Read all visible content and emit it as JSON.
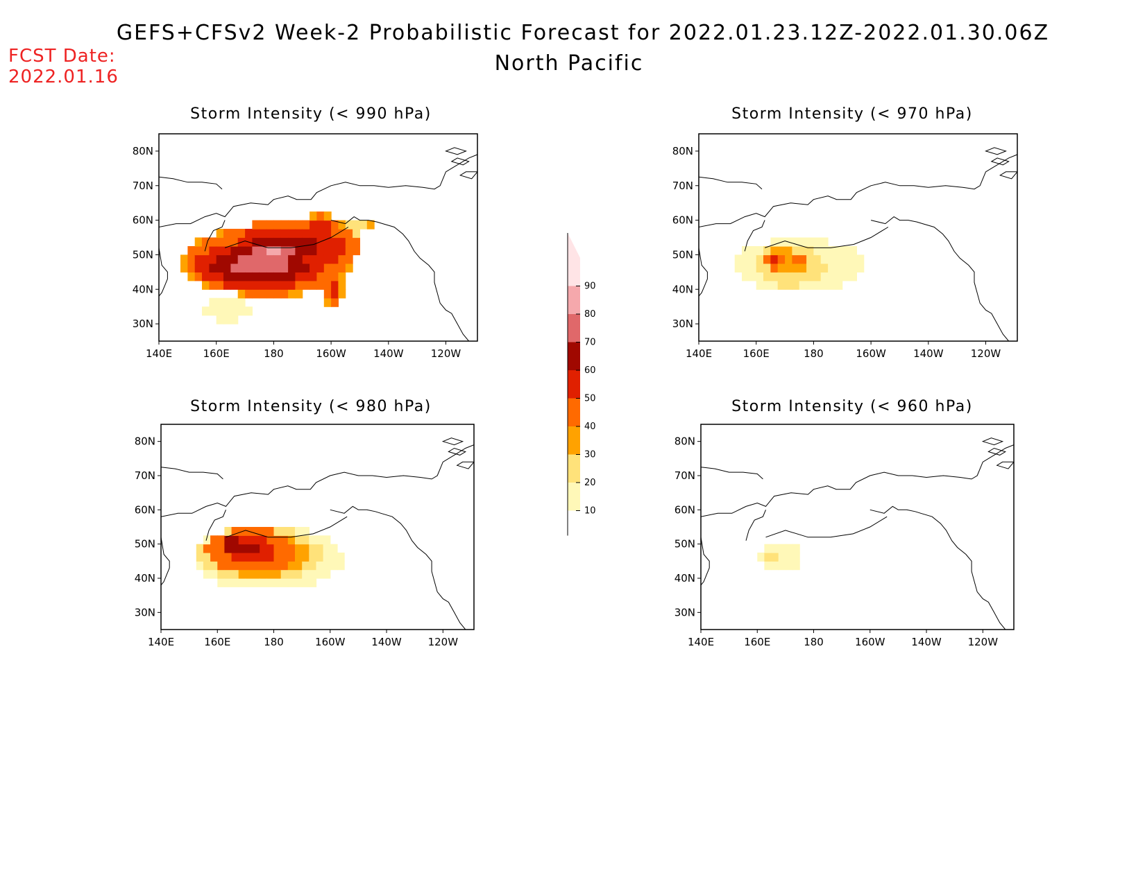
{
  "header": {
    "title": "GEFS+CFSv2 Week-2 Probabilistic Forecast for 2022.01.23.12Z-2022.01.30.06Z",
    "subtitle": "North Pacific",
    "fcst_date_label": "FCST Date:",
    "fcst_date_value": "2022.01.16",
    "fcst_color": "#ee2222"
  },
  "axes": {
    "lon_labels": [
      "140E",
      "160E",
      "180",
      "160W",
      "140W",
      "120W"
    ],
    "lon_values": [
      140,
      160,
      180,
      200,
      220,
      240
    ],
    "lat_labels": [
      "80N",
      "70N",
      "60N",
      "50N",
      "40N",
      "30N"
    ],
    "lat_values": [
      80,
      70,
      60,
      50,
      40,
      30
    ],
    "lon_range": [
      140,
      251
    ],
    "lat_range": [
      25,
      85
    ]
  },
  "colorbar": {
    "levels": [
      10,
      20,
      30,
      40,
      50,
      60,
      70,
      80,
      90
    ],
    "level_labels": [
      "10",
      "20",
      "30",
      "40",
      "50",
      "60",
      "70",
      "80",
      "90"
    ],
    "colors": [
      "#fff8b8",
      "#ffe27a",
      "#ffa200",
      "#ff6a00",
      "#e02000",
      "#a00800",
      "#e0686a",
      "#f5a8ac",
      "#ffe4e6"
    ]
  },
  "panels": [
    {
      "id": "990",
      "title": "Storm Intensity (< 990 hPa)",
      "blobs": [
        {
          "lon": 178,
          "lat": 48,
          "rlon": 30,
          "rlat": 10,
          "p": 60
        },
        {
          "lon": 186,
          "lat": 52,
          "rlon": 24,
          "rlat": 8,
          "p": 70
        },
        {
          "lon": 175,
          "lat": 47,
          "rlon": 22,
          "rlat": 7,
          "p": 82
        },
        {
          "lon": 180,
          "lat": 51,
          "rlon": 10,
          "rlat": 4,
          "p": 92
        },
        {
          "lon": 196,
          "lat": 58,
          "rlon": 8,
          "rlat": 3.5,
          "p": 60
        },
        {
          "lon": 204,
          "lat": 57,
          "rlon": 6,
          "rlat": 4,
          "p": 35
        },
        {
          "lon": 163,
          "lat": 34,
          "rlon": 9,
          "rlat": 3,
          "p": 20
        },
        {
          "lon": 201,
          "lat": 40,
          "rlon": 3,
          "rlat": 6,
          "p": 55
        },
        {
          "lon": 213,
          "lat": 59,
          "rlon": 2,
          "rlat": 2,
          "p": 35
        }
      ]
    },
    {
      "id": "970",
      "title": "Storm Intensity (< 970 hPa)",
      "blobs": [
        {
          "lon": 175,
          "lat": 47,
          "rlon": 24,
          "rlat": 8,
          "p": 15
        },
        {
          "lon": 172,
          "lat": 47,
          "rlon": 12,
          "rlat": 6,
          "p": 32
        },
        {
          "lon": 169,
          "lat": 48,
          "rlon": 6,
          "rlat": 4,
          "p": 45
        },
        {
          "lon": 166,
          "lat": 48,
          "rlon": 2.5,
          "rlat": 2,
          "p": 62
        },
        {
          "lon": 175,
          "lat": 48,
          "rlon": 3,
          "rlat": 2,
          "p": 55
        }
      ]
    },
    {
      "id": "980",
      "title": "Storm Intensity (< 980 hPa)",
      "blobs": [
        {
          "lon": 178,
          "lat": 46,
          "rlon": 28,
          "rlat": 10,
          "p": 15
        },
        {
          "lon": 175,
          "lat": 47,
          "rlon": 22,
          "rlat": 8,
          "p": 42
        },
        {
          "lon": 172,
          "lat": 48,
          "rlon": 16,
          "rlat": 6.5,
          "p": 62
        },
        {
          "lon": 170,
          "lat": 49,
          "rlon": 10,
          "rlat": 4,
          "p": 72
        },
        {
          "lon": 165,
          "lat": 50,
          "rlon": 3,
          "rlat": 2,
          "p": 88
        }
      ]
    },
    {
      "id": "960",
      "title": "Storm Intensity (< 960 hPa)",
      "blobs": [
        {
          "lon": 168,
          "lat": 46,
          "rlon": 8,
          "rlat": 5,
          "p": 15
        },
        {
          "lon": 165,
          "lat": 47,
          "rlon": 2,
          "rlat": 1.5,
          "p": 28
        },
        {
          "lon": 169,
          "lat": 45,
          "rlon": 1.5,
          "rlat": 1.5,
          "p": 24
        },
        {
          "lon": 186,
          "lat": 48,
          "rlon": 1.5,
          "rlat": 1.5,
          "p": 12
        }
      ]
    }
  ]
}
